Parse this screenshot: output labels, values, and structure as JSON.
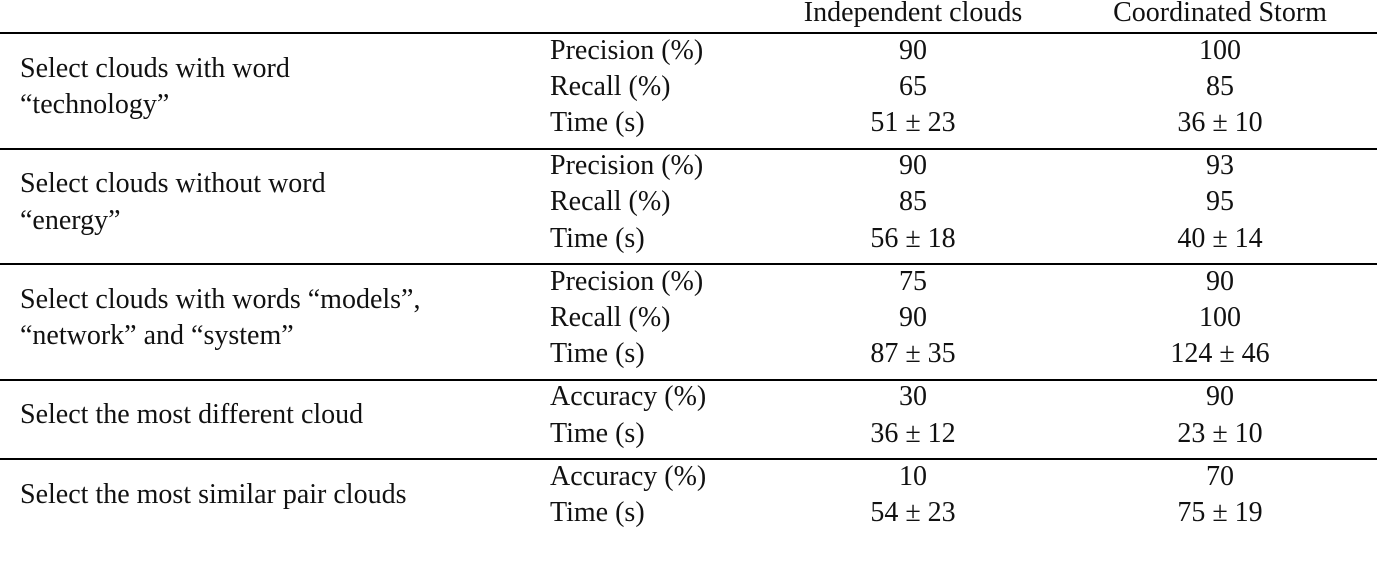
{
  "table": {
    "columns": [
      "Independent clouds",
      "Coordinated Storm"
    ],
    "groups": [
      {
        "task": [
          "Select clouds with word",
          "“technology”"
        ],
        "rows": [
          [
            "Precision (%)",
            90,
            100
          ],
          [
            "Recall (%)",
            65,
            85
          ],
          [
            "Time (s)",
            "51 ± 23",
            "36 ± 10"
          ]
        ]
      },
      {
        "task": [
          "Select clouds without word",
          "“energy”"
        ],
        "rows": [
          [
            "Precision (%)",
            90,
            93
          ],
          [
            "Recall (%)",
            85,
            95
          ],
          [
            "Time (s)",
            "56 ± 18",
            "40 ± 14"
          ]
        ]
      },
      {
        "task": [
          "Select clouds with words “models”,",
          "“network” and “system”"
        ],
        "rows": [
          [
            "Precision (%)",
            75,
            90
          ],
          [
            "Recall (%)",
            90,
            100
          ],
          [
            "Time (s)",
            "87 ± 35",
            "124 ± 46"
          ]
        ]
      },
      {
        "task": [
          "Select the most different cloud"
        ],
        "rows": [
          [
            "Accuracy (%)",
            30,
            90
          ],
          [
            "Time (s)",
            "36 ± 12",
            "23 ± 10"
          ]
        ]
      },
      {
        "task": [
          "Select the most similar pair clouds"
        ],
        "rows": [
          [
            "Accuracy (%)",
            10,
            70
          ],
          [
            "Time (s)",
            "54 ± 23",
            "75 ± 19"
          ]
        ]
      }
    ]
  }
}
